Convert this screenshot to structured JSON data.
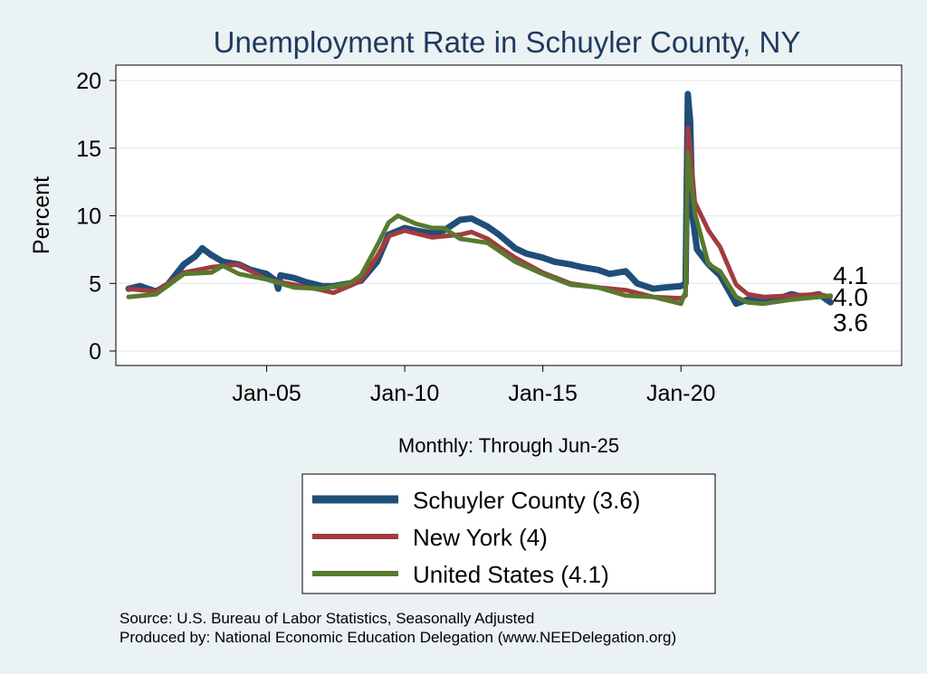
{
  "chart_data": {
    "type": "line",
    "title": "Unemployment Rate in Schuyler  County, NY",
    "ylabel": "Percent",
    "xlabel": "Monthly: Through Jun-25",
    "x_unit": "date",
    "xlim": [
      "2000-01",
      "2025-06"
    ],
    "ylim": [
      0,
      20
    ],
    "yticks": [
      0,
      5,
      10,
      15,
      20
    ],
    "xticks": [
      {
        "date": "2005-01",
        "label": "Jan-05"
      },
      {
        "date": "2010-01",
        "label": "Jan-10"
      },
      {
        "date": "2015-01",
        "label": "Jan-15"
      },
      {
        "date": "2020-01",
        "label": "Jan-20"
      }
    ],
    "grid": "horizontal",
    "legend_position": "bottom",
    "end_labels": [
      "4.1",
      "4.0",
      "3.6"
    ],
    "series": [
      {
        "name": "Schuyler  County (3.6)",
        "color": "#1f4e79",
        "points": [
          [
            "2000-01",
            4.6
          ],
          [
            "2000-06",
            4.8
          ],
          [
            "2001-01",
            4.4
          ],
          [
            "2001-06",
            4.9
          ],
          [
            "2002-01",
            6.4
          ],
          [
            "2002-06",
            7.0
          ],
          [
            "2002-09",
            7.6
          ],
          [
            "2003-01",
            7.1
          ],
          [
            "2003-06",
            6.6
          ],
          [
            "2004-01",
            6.4
          ],
          [
            "2004-06",
            6.0
          ],
          [
            "2005-01",
            5.7
          ],
          [
            "2005-05",
            5.2
          ],
          [
            "2005-06",
            4.6
          ],
          [
            "2005-07",
            5.6
          ],
          [
            "2006-01",
            5.4
          ],
          [
            "2006-06",
            5.1
          ],
          [
            "2007-01",
            4.8
          ],
          [
            "2007-06",
            4.8
          ],
          [
            "2008-01",
            5.0
          ],
          [
            "2008-06",
            5.2
          ],
          [
            "2009-01",
            6.6
          ],
          [
            "2009-06",
            8.6
          ],
          [
            "2010-01",
            9.1
          ],
          [
            "2010-06",
            8.9
          ],
          [
            "2011-01",
            8.7
          ],
          [
            "2011-06",
            8.9
          ],
          [
            "2012-01",
            9.7
          ],
          [
            "2012-06",
            9.8
          ],
          [
            "2013-01",
            9.2
          ],
          [
            "2013-06",
            8.6
          ],
          [
            "2014-01",
            7.6
          ],
          [
            "2014-06",
            7.2
          ],
          [
            "2015-01",
            6.9
          ],
          [
            "2015-06",
            6.6
          ],
          [
            "2016-01",
            6.4
          ],
          [
            "2016-06",
            6.2
          ],
          [
            "2017-01",
            6.0
          ],
          [
            "2017-06",
            5.7
          ],
          [
            "2018-01",
            5.9
          ],
          [
            "2018-06",
            5.0
          ],
          [
            "2019-01",
            4.6
          ],
          [
            "2019-06",
            4.7
          ],
          [
            "2020-01",
            4.8
          ],
          [
            "2020-03",
            5.0
          ],
          [
            "2020-04",
            19.0
          ],
          [
            "2020-05",
            17.0
          ],
          [
            "2020-06",
            10.0
          ],
          [
            "2020-08",
            7.5
          ],
          [
            "2021-01",
            6.4
          ],
          [
            "2021-06",
            5.6
          ],
          [
            "2022-01",
            3.5
          ],
          [
            "2022-06",
            3.8
          ],
          [
            "2023-01",
            3.6
          ],
          [
            "2023-06",
            3.8
          ],
          [
            "2024-01",
            4.2
          ],
          [
            "2024-06",
            4.0
          ],
          [
            "2025-01",
            4.2
          ],
          [
            "2025-06",
            3.6
          ]
        ]
      },
      {
        "name": "New York (4)",
        "color": "#a23b3f",
        "points": [
          [
            "2000-01",
            4.6
          ],
          [
            "2001-01",
            4.4
          ],
          [
            "2002-01",
            5.8
          ],
          [
            "2003-01",
            6.2
          ],
          [
            "2004-01",
            6.4
          ],
          [
            "2005-01",
            5.3
          ],
          [
            "2006-01",
            4.9
          ],
          [
            "2007-01",
            4.5
          ],
          [
            "2007-06",
            4.3
          ],
          [
            "2008-01",
            4.8
          ],
          [
            "2008-06",
            5.2
          ],
          [
            "2009-01",
            7.0
          ],
          [
            "2009-06",
            8.5
          ],
          [
            "2010-01",
            8.9
          ],
          [
            "2011-01",
            8.4
          ],
          [
            "2012-01",
            8.6
          ],
          [
            "2012-06",
            8.8
          ],
          [
            "2013-01",
            8.3
          ],
          [
            "2013-06",
            7.7
          ],
          [
            "2014-01",
            6.9
          ],
          [
            "2015-01",
            5.8
          ],
          [
            "2016-01",
            5.0
          ],
          [
            "2017-01",
            4.7
          ],
          [
            "2018-01",
            4.5
          ],
          [
            "2019-01",
            4.0
          ],
          [
            "2020-01",
            3.9
          ],
          [
            "2020-03",
            4.1
          ],
          [
            "2020-04",
            16.5
          ],
          [
            "2020-05",
            15.0
          ],
          [
            "2020-07",
            11.0
          ],
          [
            "2021-01",
            8.9
          ],
          [
            "2021-06",
            7.7
          ],
          [
            "2022-01",
            4.9
          ],
          [
            "2022-06",
            4.2
          ],
          [
            "2023-01",
            4.0
          ],
          [
            "2024-01",
            4.1
          ],
          [
            "2025-01",
            4.2
          ],
          [
            "2025-06",
            4.0
          ]
        ]
      },
      {
        "name": "United States (4.1)",
        "color": "#587a2e",
        "points": [
          [
            "2000-01",
            4.0
          ],
          [
            "2001-01",
            4.2
          ],
          [
            "2002-01",
            5.7
          ],
          [
            "2003-01",
            5.8
          ],
          [
            "2003-06",
            6.3
          ],
          [
            "2004-01",
            5.7
          ],
          [
            "2005-01",
            5.3
          ],
          [
            "2006-01",
            4.7
          ],
          [
            "2007-01",
            4.6
          ],
          [
            "2008-01",
            5.0
          ],
          [
            "2008-06",
            5.6
          ],
          [
            "2009-01",
            7.8
          ],
          [
            "2009-06",
            9.5
          ],
          [
            "2009-10",
            10.0
          ],
          [
            "2010-06",
            9.4
          ],
          [
            "2011-01",
            9.1
          ],
          [
            "2011-06",
            9.1
          ],
          [
            "2012-01",
            8.3
          ],
          [
            "2013-01",
            8.0
          ],
          [
            "2014-01",
            6.6
          ],
          [
            "2015-01",
            5.7
          ],
          [
            "2016-01",
            4.9
          ],
          [
            "2017-01",
            4.7
          ],
          [
            "2018-01",
            4.1
          ],
          [
            "2019-01",
            4.0
          ],
          [
            "2020-01",
            3.5
          ],
          [
            "2020-03",
            4.4
          ],
          [
            "2020-04",
            14.7
          ],
          [
            "2020-05",
            13.2
          ],
          [
            "2020-07",
            10.2
          ],
          [
            "2021-01",
            6.4
          ],
          [
            "2021-06",
            5.9
          ],
          [
            "2022-01",
            4.0
          ],
          [
            "2022-06",
            3.6
          ],
          [
            "2023-01",
            3.5
          ],
          [
            "2024-01",
            3.8
          ],
          [
            "2025-01",
            4.0
          ],
          [
            "2025-06",
            4.1
          ]
        ]
      }
    ]
  },
  "source_lines": [
    "Source: U.S. Bureau of Labor Statistics, Seasonally Adjusted",
    "Produced by: National Economic Education Delegation (www.NEEDelegation.org)"
  ]
}
